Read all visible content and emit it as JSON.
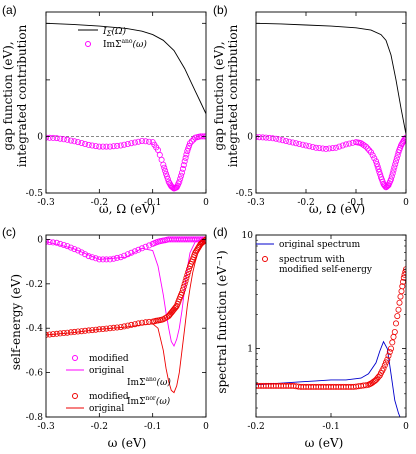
{
  "chart_data": [
    {
      "type": "line",
      "panel_label": "(a)",
      "ylabel_lines": [
        "gap function (eV),",
        "integrated contribution"
      ],
      "xlabel": "ω, Ω (eV)",
      "xlim": [
        -0.3,
        0
      ],
      "ylim": [
        -0.5,
        1.1
      ],
      "xticks": [
        -0.3,
        -0.2,
        -0.1,
        0
      ],
      "xtick_labels": [
        "-0.3",
        "-0.2",
        "-0.1",
        "0"
      ],
      "yticks": [
        -0.5,
        0,
        0.5,
        1
      ],
      "ytick_labels": [
        "-0.5",
        "0",
        "",
        ""
      ],
      "zero_line": true,
      "legend_position": "top-right",
      "series": [
        {
          "name": "IΣ(Ω)",
          "style": "line",
          "color": "#000000",
          "x": [
            -0.3,
            -0.25,
            -0.2,
            -0.15,
            -0.12,
            -0.1,
            -0.08,
            -0.06,
            -0.04,
            -0.03,
            -0.02,
            -0.01,
            0
          ],
          "y": [
            1.0,
            0.99,
            0.975,
            0.955,
            0.93,
            0.9,
            0.85,
            0.76,
            0.6,
            0.5,
            0.4,
            0.3,
            0.2
          ]
        },
        {
          "name": "ImΣano(ω)",
          "style": "markers",
          "color": "#ff00ff",
          "x": [
            -0.3,
            -0.28,
            -0.26,
            -0.24,
            -0.22,
            -0.2,
            -0.18,
            -0.16,
            -0.14,
            -0.12,
            -0.1,
            -0.09,
            -0.08,
            -0.075,
            -0.07,
            -0.065,
            -0.06,
            -0.055,
            -0.05,
            -0.045,
            -0.04,
            -0.035,
            -0.03,
            -0.02,
            -0.01,
            0
          ],
          "y": [
            -0.01,
            -0.015,
            -0.03,
            -0.05,
            -0.075,
            -0.09,
            -0.09,
            -0.08,
            -0.06,
            -0.04,
            -0.05,
            -0.12,
            -0.25,
            -0.33,
            -0.4,
            -0.44,
            -0.46,
            -0.45,
            -0.4,
            -0.32,
            -0.22,
            -0.13,
            -0.06,
            -0.01,
            0.0,
            0.0
          ]
        }
      ]
    },
    {
      "type": "line",
      "panel_label": "(b)",
      "ylabel_lines": [
        "gap function (eV),",
        "integrated contribution"
      ],
      "xlabel": "ω, Ω (eV)",
      "xlim": [
        -0.3,
        0
      ],
      "ylim": [
        -0.5,
        1.1
      ],
      "xticks": [
        -0.3,
        -0.2,
        -0.1,
        0
      ],
      "xtick_labels": [
        "-0.3",
        "-0.2",
        "-0.1",
        "0"
      ],
      "yticks": [
        -0.5,
        0,
        0.5,
        1
      ],
      "ytick_labels": [
        "-0.5",
        "0",
        "",
        ""
      ],
      "zero_line": true,
      "series": [
        {
          "name": "IΣ(Ω)",
          "style": "line",
          "color": "#000000",
          "x": [
            -0.3,
            -0.25,
            -0.2,
            -0.15,
            -0.1,
            -0.07,
            -0.05,
            -0.04,
            -0.03,
            -0.02,
            -0.01,
            0
          ],
          "y": [
            1.0,
            0.995,
            0.985,
            0.975,
            0.96,
            0.94,
            0.9,
            0.85,
            0.72,
            0.5,
            0.25,
            0.02
          ]
        },
        {
          "name": "ImΣano(ω)",
          "style": "markers",
          "color": "#ff00ff",
          "x": [
            -0.3,
            -0.28,
            -0.26,
            -0.24,
            -0.22,
            -0.2,
            -0.18,
            -0.16,
            -0.14,
            -0.12,
            -0.1,
            -0.09,
            -0.08,
            -0.07,
            -0.06,
            -0.055,
            -0.05,
            -0.045,
            -0.04,
            -0.035,
            -0.03,
            -0.025,
            -0.02,
            -0.015,
            -0.01,
            -0.005,
            0
          ],
          "y": [
            -0.005,
            -0.01,
            -0.02,
            -0.04,
            -0.06,
            -0.08,
            -0.1,
            -0.11,
            -0.1,
            -0.07,
            -0.05,
            -0.06,
            -0.09,
            -0.14,
            -0.22,
            -0.29,
            -0.36,
            -0.42,
            -0.45,
            -0.43,
            -0.38,
            -0.3,
            -0.22,
            -0.14,
            -0.08,
            -0.04,
            -0.01
          ]
        }
      ]
    },
    {
      "type": "line",
      "panel_label": "(c)",
      "ylabel_lines": [
        "self-energy  (eV)"
      ],
      "xlabel": "ω  (eV)",
      "xlim": [
        -0.3,
        0
      ],
      "ylim": [
        -0.8,
        0.02
      ],
      "xticks": [
        -0.3,
        -0.2,
        -0.1,
        0
      ],
      "xtick_labels": [
        "-0.3",
        "-0.2",
        "-0.1",
        "0"
      ],
      "yticks": [
        -0.8,
        -0.6,
        -0.4,
        -0.2,
        0
      ],
      "ytick_labels": [
        "-0.8",
        "-0.6",
        "-0.4",
        "-0.2",
        "0"
      ],
      "legend_position": "lower-left",
      "legend": [
        {
          "label": "modified",
          "color": "#ff00ff",
          "style": "marker"
        },
        {
          "label": "original",
          "color": "#ff00ff",
          "style": "line"
        },
        {
          "label": "modified",
          "color": "#ee0000",
          "style": "marker"
        },
        {
          "label": "original",
          "color": "#ee0000",
          "style": "line"
        }
      ],
      "legend_group_labels": [
        "ImΣano(ω)",
        "ImΣnor(ω)"
      ],
      "series": [
        {
          "name": "modified ImΣano",
          "style": "markers",
          "color": "#ff00ff",
          "x": [
            -0.3,
            -0.28,
            -0.26,
            -0.24,
            -0.22,
            -0.2,
            -0.18,
            -0.16,
            -0.14,
            -0.12,
            -0.1,
            -0.09,
            -0.08,
            -0.07,
            -0.06,
            -0.05,
            -0.04,
            -0.03,
            -0.02,
            -0.01,
            0
          ],
          "y": [
            -0.01,
            -0.015,
            -0.03,
            -0.05,
            -0.075,
            -0.09,
            -0.09,
            -0.08,
            -0.06,
            -0.04,
            -0.02,
            -0.01,
            -0.005,
            0.0,
            0.0,
            0.0,
            0.0,
            0.0,
            0.0,
            0.0,
            0.0
          ]
        },
        {
          "name": "original ImΣano",
          "style": "line",
          "color": "#ff00ff",
          "x": [
            -0.3,
            -0.25,
            -0.2,
            -0.15,
            -0.12,
            -0.1,
            -0.09,
            -0.08,
            -0.075,
            -0.07,
            -0.065,
            -0.06,
            -0.055,
            -0.05,
            -0.045,
            -0.04,
            -0.035,
            -0.03,
            -0.02,
            -0.01,
            0
          ],
          "y": [
            -0.01,
            -0.04,
            -0.09,
            -0.08,
            -0.04,
            -0.05,
            -0.12,
            -0.25,
            -0.33,
            -0.4,
            -0.46,
            -0.48,
            -0.45,
            -0.4,
            -0.32,
            -0.22,
            -0.13,
            -0.06,
            -0.01,
            0.0,
            0.0
          ]
        },
        {
          "name": "modified ImΣnor",
          "style": "markers",
          "color": "#ee0000",
          "x": [
            -0.3,
            -0.28,
            -0.26,
            -0.24,
            -0.22,
            -0.2,
            -0.18,
            -0.16,
            -0.14,
            -0.12,
            -0.1,
            -0.09,
            -0.08,
            -0.07,
            -0.065,
            -0.06,
            -0.055,
            -0.05,
            -0.045,
            -0.04,
            -0.035,
            -0.03,
            -0.025,
            -0.02,
            -0.015,
            -0.01,
            -0.005,
            0
          ],
          "y": [
            -0.43,
            -0.425,
            -0.42,
            -0.415,
            -0.41,
            -0.405,
            -0.4,
            -0.395,
            -0.385,
            -0.375,
            -0.37,
            -0.365,
            -0.36,
            -0.345,
            -0.33,
            -0.315,
            -0.3,
            -0.27,
            -0.24,
            -0.2,
            -0.16,
            -0.12,
            -0.09,
            -0.06,
            -0.04,
            -0.02,
            -0.01,
            0.0
          ]
        },
        {
          "name": "original ImΣnor",
          "style": "line",
          "color": "#ee0000",
          "x": [
            -0.3,
            -0.25,
            -0.2,
            -0.15,
            -0.12,
            -0.1,
            -0.09,
            -0.08,
            -0.075,
            -0.07,
            -0.065,
            -0.06,
            -0.055,
            -0.05,
            -0.045,
            -0.04,
            -0.035,
            -0.03,
            -0.025,
            -0.02,
            -0.015,
            -0.01,
            -0.005,
            0
          ],
          "y": [
            -0.43,
            -0.42,
            -0.405,
            -0.395,
            -0.385,
            -0.38,
            -0.4,
            -0.5,
            -0.58,
            -0.64,
            -0.68,
            -0.69,
            -0.66,
            -0.6,
            -0.5,
            -0.4,
            -0.3,
            -0.22,
            -0.15,
            -0.1,
            -0.06,
            -0.03,
            -0.01,
            0.0
          ]
        }
      ]
    },
    {
      "type": "line",
      "panel_label": "(d)",
      "ylabel_lines": [
        "spectral function  (eV⁻¹)"
      ],
      "xlabel": "ω  (eV)",
      "xlim": [
        -0.2,
        0
      ],
      "ylim": [
        0.25,
        10
      ],
      "yscale": "log",
      "xticks": [
        -0.2,
        -0.1,
        0
      ],
      "xtick_labels": [
        "-0.2",
        "-0.1",
        "0"
      ],
      "yticks": [
        1,
        10
      ],
      "ytick_labels": [
        "1",
        "10"
      ],
      "legend_position": "top",
      "legend": [
        {
          "label": "original spectrum",
          "color": "#0000cc",
          "style": "line"
        },
        {
          "label": "spectrum with",
          "label2": "modified self-energy",
          "color": "#ee0000",
          "style": "marker"
        }
      ],
      "series": [
        {
          "name": "original spectrum",
          "style": "line",
          "color": "#0000cc",
          "x": [
            -0.2,
            -0.18,
            -0.16,
            -0.14,
            -0.12,
            -0.1,
            -0.08,
            -0.06,
            -0.05,
            -0.04,
            -0.035,
            -0.03,
            -0.025,
            -0.02,
            -0.015,
            -0.01,
            -0.008
          ],
          "y": [
            0.48,
            0.49,
            0.5,
            0.51,
            0.52,
            0.53,
            0.53,
            0.55,
            0.6,
            0.75,
            0.95,
            1.15,
            1.0,
            0.6,
            0.35,
            0.27,
            0.25
          ]
        },
        {
          "name": "spectrum with modified self-energy",
          "style": "markers",
          "color": "#ee0000",
          "x": [
            -0.2,
            -0.19,
            -0.18,
            -0.17,
            -0.16,
            -0.15,
            -0.14,
            -0.13,
            -0.12,
            -0.11,
            -0.1,
            -0.09,
            -0.08,
            -0.07,
            -0.06,
            -0.05,
            -0.045,
            -0.04,
            -0.035,
            -0.03,
            -0.025,
            -0.02,
            -0.015,
            -0.01,
            -0.006,
            -0.003,
            0
          ],
          "y": [
            0.47,
            0.47,
            0.47,
            0.47,
            0.47,
            0.47,
            0.46,
            0.46,
            0.46,
            0.46,
            0.46,
            0.46,
            0.46,
            0.46,
            0.47,
            0.48,
            0.5,
            0.53,
            0.58,
            0.67,
            0.8,
            1.0,
            1.4,
            2.2,
            3.2,
            4.2,
            5.0
          ]
        }
      ]
    }
  ]
}
